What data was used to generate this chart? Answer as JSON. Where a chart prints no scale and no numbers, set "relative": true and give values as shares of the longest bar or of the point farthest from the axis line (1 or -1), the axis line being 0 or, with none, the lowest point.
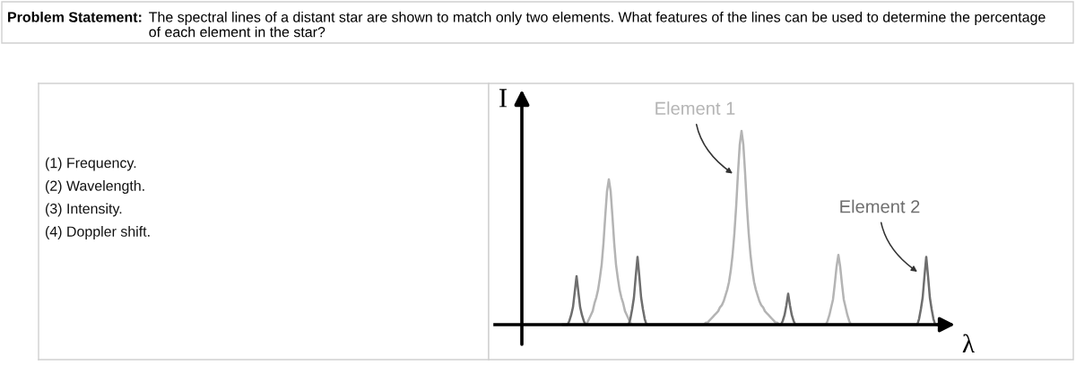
{
  "chart_data": [
    {
      "type": "other",
      "title": "Problem Statement:",
      "subtitle": "The spectral lines of a distant star are shown to match only two elements. What features of the lines can be used to determine the percentage of each element in the star?",
      "annotations": [
        "(1) Frequency.",
        "(2) Wavelength.",
        "(3) Intensity.",
        "(4) Doppler shift."
      ]
    },
    {
      "type": "line",
      "relative": true,
      "xlabel": "λ",
      "ylabel": "I",
      "categories": [
        null,
        null,
        null,
        null,
        null,
        null,
        null,
        null,
        null,
        null,
        null,
        null,
        null,
        null,
        null,
        null,
        null,
        null,
        null,
        null,
        null,
        null,
        null,
        null,
        null,
        null,
        null,
        null,
        null,
        null,
        null,
        null,
        null,
        null,
        null,
        null,
        null,
        null,
        null,
        null,
        null,
        null,
        null,
        null,
        null,
        null,
        null,
        null,
        null,
        null,
        null,
        null,
        null,
        null,
        null,
        null,
        null,
        null,
        null,
        null,
        null,
        null,
        null,
        null,
        null,
        null,
        null,
        null,
        null,
        null,
        null,
        null,
        null,
        null,
        null,
        null,
        null,
        null,
        null,
        null,
        null,
        null,
        null,
        null,
        null,
        null,
        null,
        null,
        null,
        null,
        null,
        null,
        null,
        null,
        null,
        null,
        null,
        null,
        null,
        null,
        null,
        null,
        null,
        null,
        null,
        null,
        null,
        null,
        null,
        null,
        null,
        null,
        null,
        null,
        null,
        null,
        null,
        null,
        null,
        null,
        null,
        null,
        null,
        null,
        null,
        null,
        null,
        null,
        null,
        null,
        null,
        null,
        null,
        null,
        null,
        null,
        null,
        null,
        null,
        null,
        null,
        null,
        null,
        null,
        null,
        null,
        null,
        null,
        null,
        null,
        null,
        null,
        null,
        null,
        null,
        null,
        null,
        null,
        null,
        null,
        null,
        null,
        null,
        null,
        null,
        null,
        null,
        null,
        null,
        null,
        null,
        null,
        null,
        null,
        null,
        null,
        null,
        null,
        null,
        null,
        null,
        null,
        null,
        null,
        null,
        null,
        null,
        null,
        null,
        null,
        null,
        null,
        null,
        null,
        null,
        null,
        null,
        null,
        null,
        null,
        null,
        null,
        null,
        null,
        null,
        null,
        null,
        null,
        null,
        null
      ],
      "series": [
        {
          "name": "Element 1",
          "color": "#b4b4b4",
          "values": [
            0,
            0,
            0,
            0,
            0,
            0,
            0,
            0,
            0,
            0,
            0,
            0,
            0,
            0,
            0.01,
            0.03,
            0.05,
            0.07,
            0.11,
            0.14,
            0.18,
            0.24,
            0.31,
            0.42,
            0.56,
            0.69,
            0.75,
            0.69,
            0.56,
            0.42,
            0.31,
            0.24,
            0.18,
            0.14,
            0.11,
            0.07,
            0.05,
            0.03,
            0.01,
            0,
            0,
            0,
            0,
            0,
            0,
            0,
            0,
            0,
            0,
            0,
            0,
            0,
            0,
            0,
            0,
            0,
            0,
            0,
            0,
            0,
            0,
            0,
            0,
            0,
            0,
            0,
            0,
            0,
            0,
            0,
            0,
            0,
            0,
            0,
            0,
            0,
            0,
            0,
            0,
            0,
            0.01,
            0.01,
            0.02,
            0.03,
            0.04,
            0.05,
            0.06,
            0.07,
            0.09,
            0.1,
            0.12,
            0.15,
            0.18,
            0.22,
            0.28,
            0.36,
            0.47,
            0.61,
            0.78,
            0.93,
            1,
            0.93,
            0.78,
            0.61,
            0.47,
            0.36,
            0.28,
            0.22,
            0.18,
            0.15,
            0.12,
            0.1,
            0.09,
            0.07,
            0.06,
            0.05,
            0.04,
            0.03,
            0.02,
            0.01,
            0.01,
            0,
            0,
            0,
            0,
            0,
            0,
            0,
            0,
            0,
            0,
            0,
            0,
            0,
            0,
            0,
            0,
            0,
            0,
            0,
            0,
            0,
            0,
            0,
            0,
            0,
            0,
            0,
            0.02,
            0.05,
            0.09,
            0.13,
            0.21,
            0.3,
            0.36,
            0.3,
            0.21,
            0.13,
            0.09,
            0.05,
            0.02,
            0,
            0,
            0,
            0,
            0,
            0,
            0,
            0,
            0,
            0,
            0,
            0,
            0,
            0,
            0,
            0,
            0,
            0,
            0,
            0,
            0,
            0,
            0,
            0,
            0,
            0,
            0,
            0,
            0,
            0,
            0,
            0,
            0,
            0,
            0,
            0,
            0,
            0,
            0,
            0,
            0,
            0,
            0,
            0,
            0,
            0,
            0,
            0,
            0
          ]
        },
        {
          "name": "Element 2",
          "color": "#6e6e6e",
          "values": [
            0,
            0,
            0,
            0,
            0.02,
            0.05,
            0.09,
            0.17,
            0.25,
            0.17,
            0.09,
            0.05,
            0.02,
            0,
            0,
            0,
            0,
            0,
            0,
            0,
            0,
            0,
            0,
            0,
            0,
            0,
            0,
            0,
            0,
            0,
            0,
            0,
            0,
            0,
            0,
            0,
            0,
            0,
            0.03,
            0.08,
            0.14,
            0.25,
            0.35,
            0.25,
            0.14,
            0.08,
            0.03,
            0,
            0,
            0,
            0,
            0,
            0,
            0,
            0,
            0,
            0,
            0,
            0,
            0,
            0,
            0,
            0,
            0,
            0,
            0,
            0,
            0,
            0,
            0,
            0,
            0,
            0,
            0,
            0,
            0,
            0,
            0,
            0,
            0,
            0,
            0,
            0,
            0,
            0,
            0,
            0,
            0,
            0,
            0,
            0,
            0,
            0,
            0,
            0,
            0,
            0,
            0,
            0,
            0,
            0,
            0,
            0,
            0,
            0,
            0,
            0,
            0,
            0,
            0,
            0,
            0,
            0,
            0,
            0,
            0,
            0,
            0,
            0,
            0,
            0,
            0,
            0,
            0.02,
            0.05,
            0.1,
            0.16,
            0.1,
            0.05,
            0.02,
            0,
            0,
            0,
            0,
            0,
            0,
            0,
            0,
            0,
            0,
            0,
            0,
            0,
            0,
            0,
            0,
            0,
            0,
            0,
            0,
            0,
            0,
            0,
            0,
            0,
            0,
            0,
            0,
            0,
            0,
            0,
            0,
            0,
            0,
            0,
            0,
            0,
            0,
            0,
            0,
            0,
            0,
            0,
            0,
            0,
            0,
            0,
            0,
            0,
            0,
            0,
            0,
            0,
            0,
            0,
            0,
            0,
            0,
            0,
            0,
            0,
            0,
            0,
            0,
            0,
            0,
            0,
            0,
            0,
            0.03,
            0.08,
            0.14,
            0.25,
            0.35,
            0.25,
            0.14,
            0.08,
            0.03,
            0,
            0
          ]
        }
      ]
    }
  ]
}
